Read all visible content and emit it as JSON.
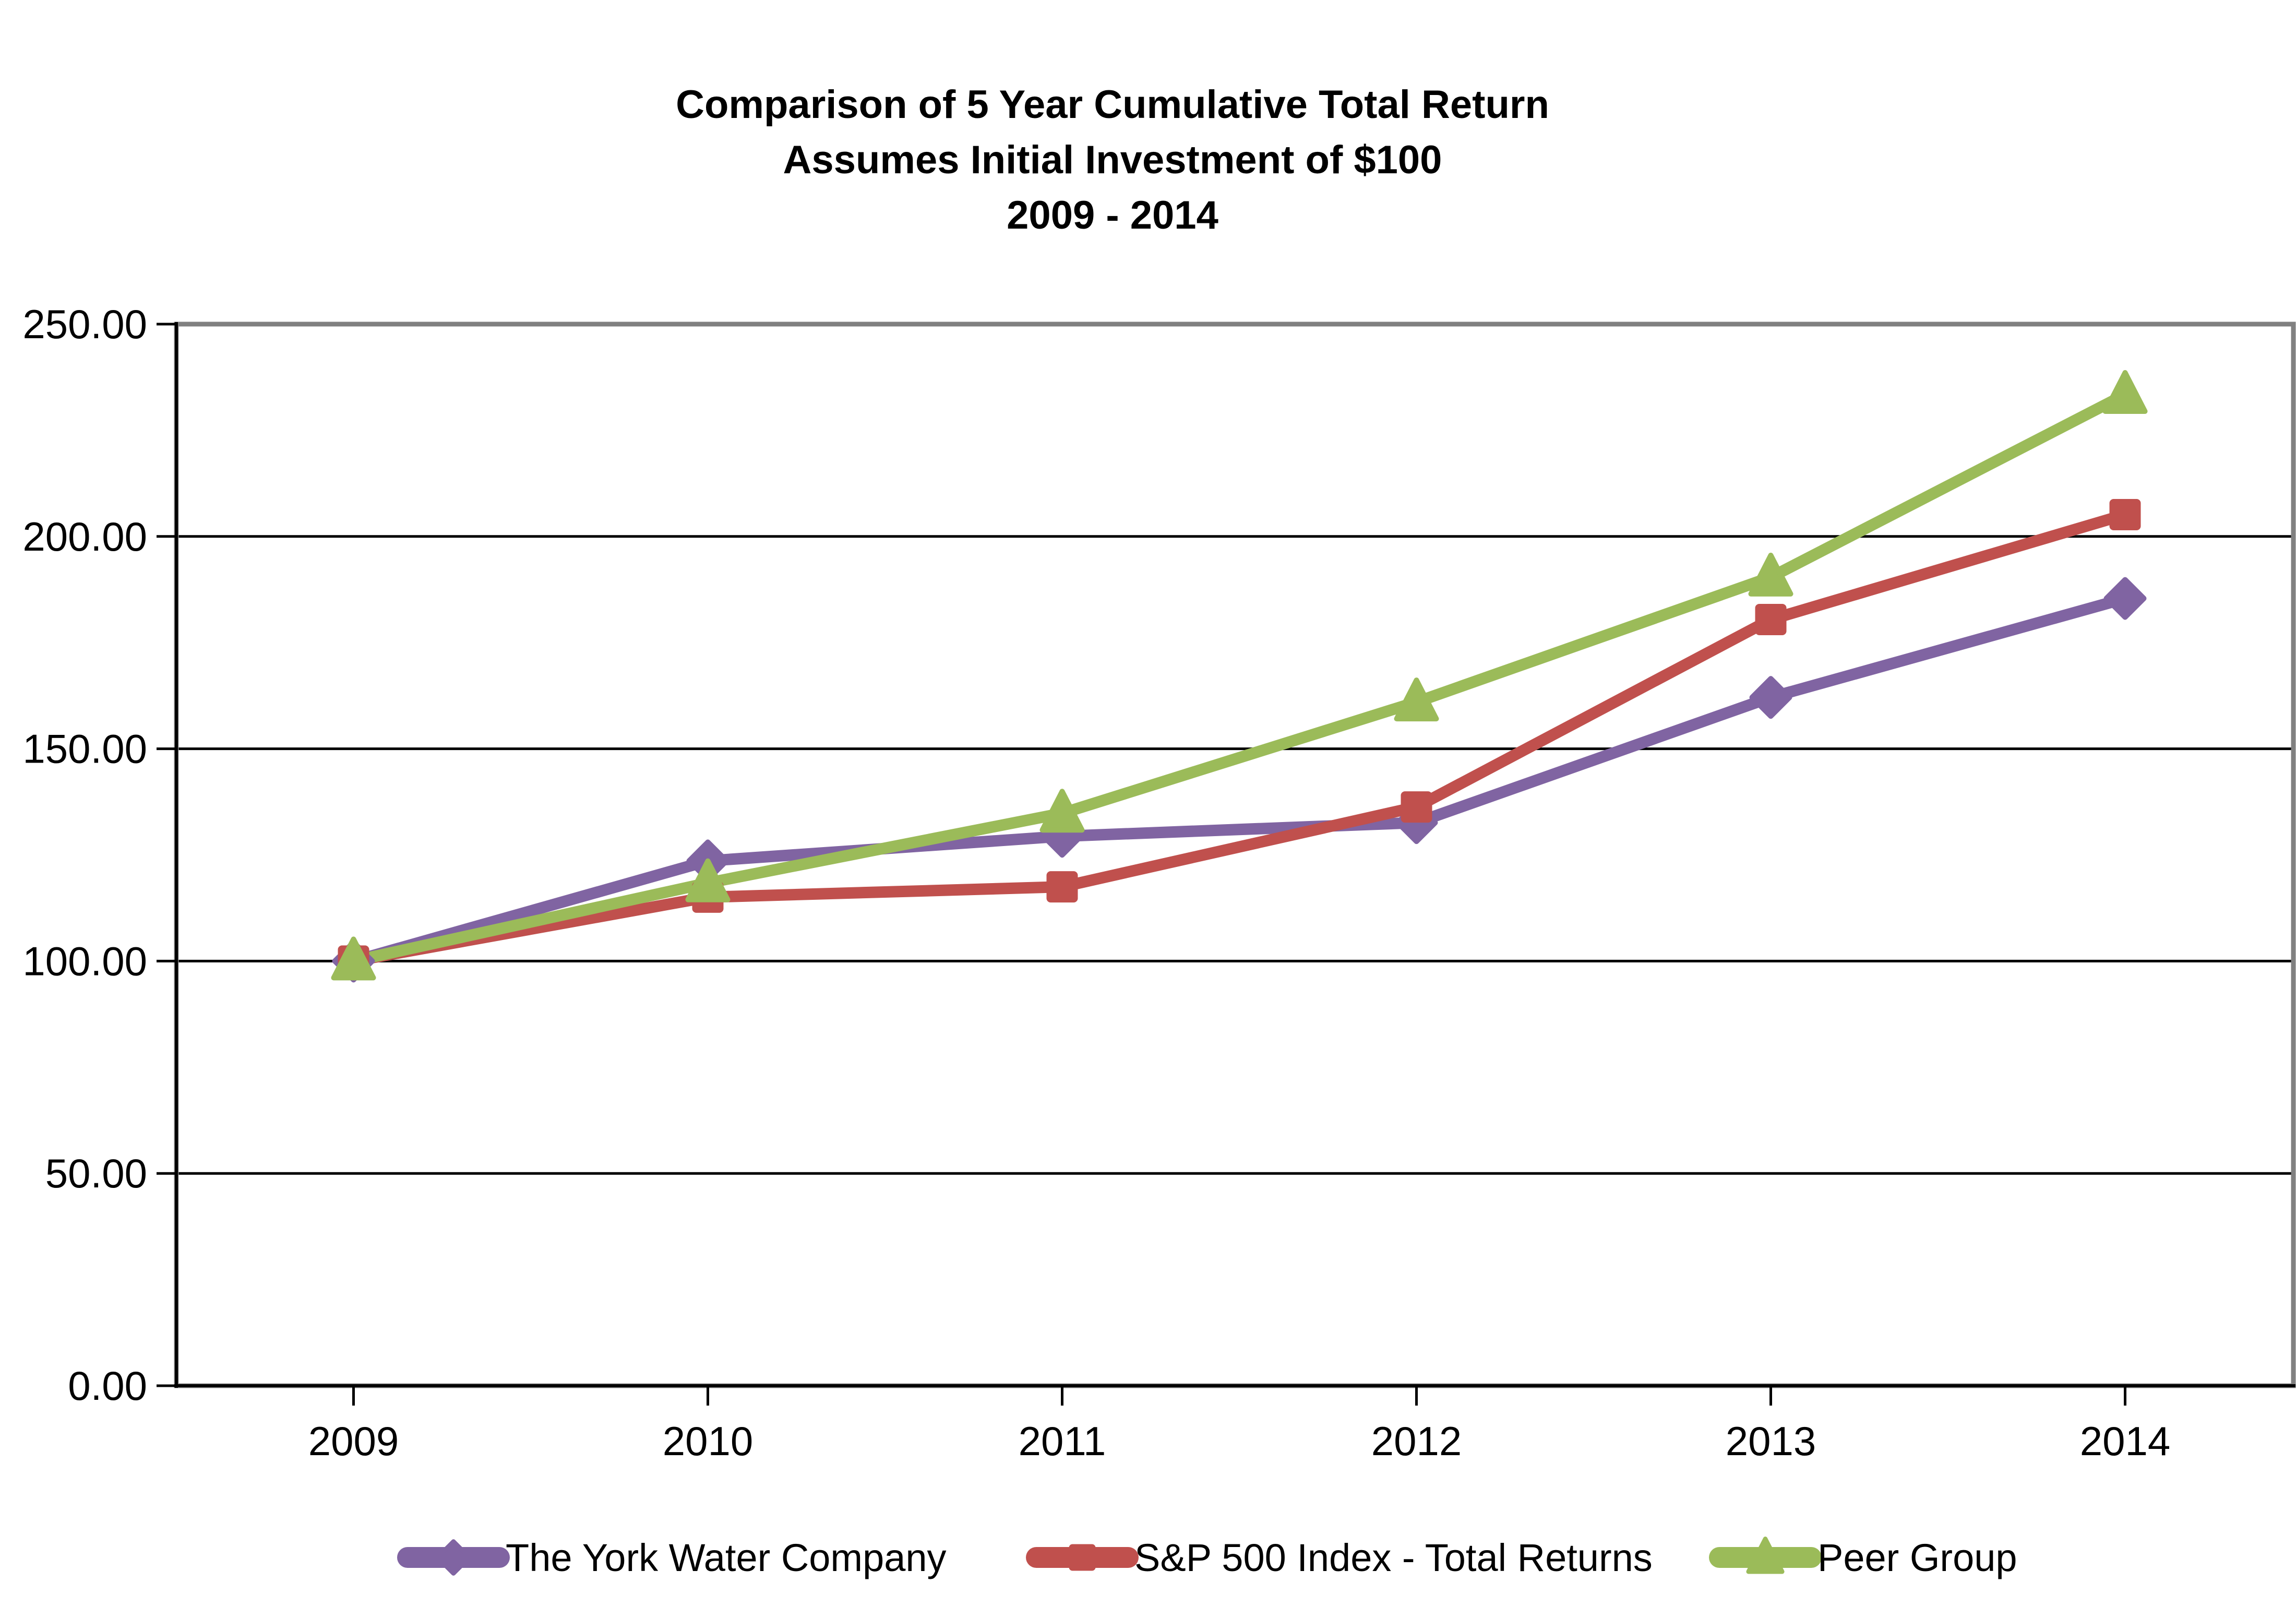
{
  "title": {
    "line1": "Comparison of 5 Year Cumulative Total Return",
    "line2": "Assumes Initial Investment of $100",
    "line3": "2009 - 2014"
  },
  "chart_data": {
    "type": "line",
    "categories": [
      "2009",
      "2010",
      "2011",
      "2012",
      "2013",
      "2014"
    ],
    "series": [
      {
        "name": "The York Water Company",
        "color": "#8064A2",
        "marker": "diamond",
        "values": [
          100.0,
          123.6,
          129.4,
          132.6,
          162.1,
          185.4
        ]
      },
      {
        "name": "S&P 500 Index - Total Returns",
        "color": "#C0504D",
        "marker": "square",
        "values": [
          100.0,
          115.06,
          117.49,
          136.3,
          180.44,
          205.14
        ]
      },
      {
        "name": "Peer Group",
        "color": "#9BBB59",
        "marker": "triangle",
        "values": [
          100.0,
          118.4,
          134.8,
          161.0,
          190.4,
          233.4
        ]
      }
    ],
    "xlabel": "",
    "ylabel": "",
    "ylim": [
      0,
      250
    ],
    "ytick_step": 50,
    "ytick_labels": [
      "0.00",
      "50.00",
      "100.00",
      "150.00",
      "200.00",
      "250.00"
    ],
    "grid": "horizontal-black",
    "plot_border_color": "#808080",
    "gridline_color": "#000000",
    "axis_line_color": "#000000",
    "background": "#FFFFFF",
    "legend_position": "bottom"
  }
}
